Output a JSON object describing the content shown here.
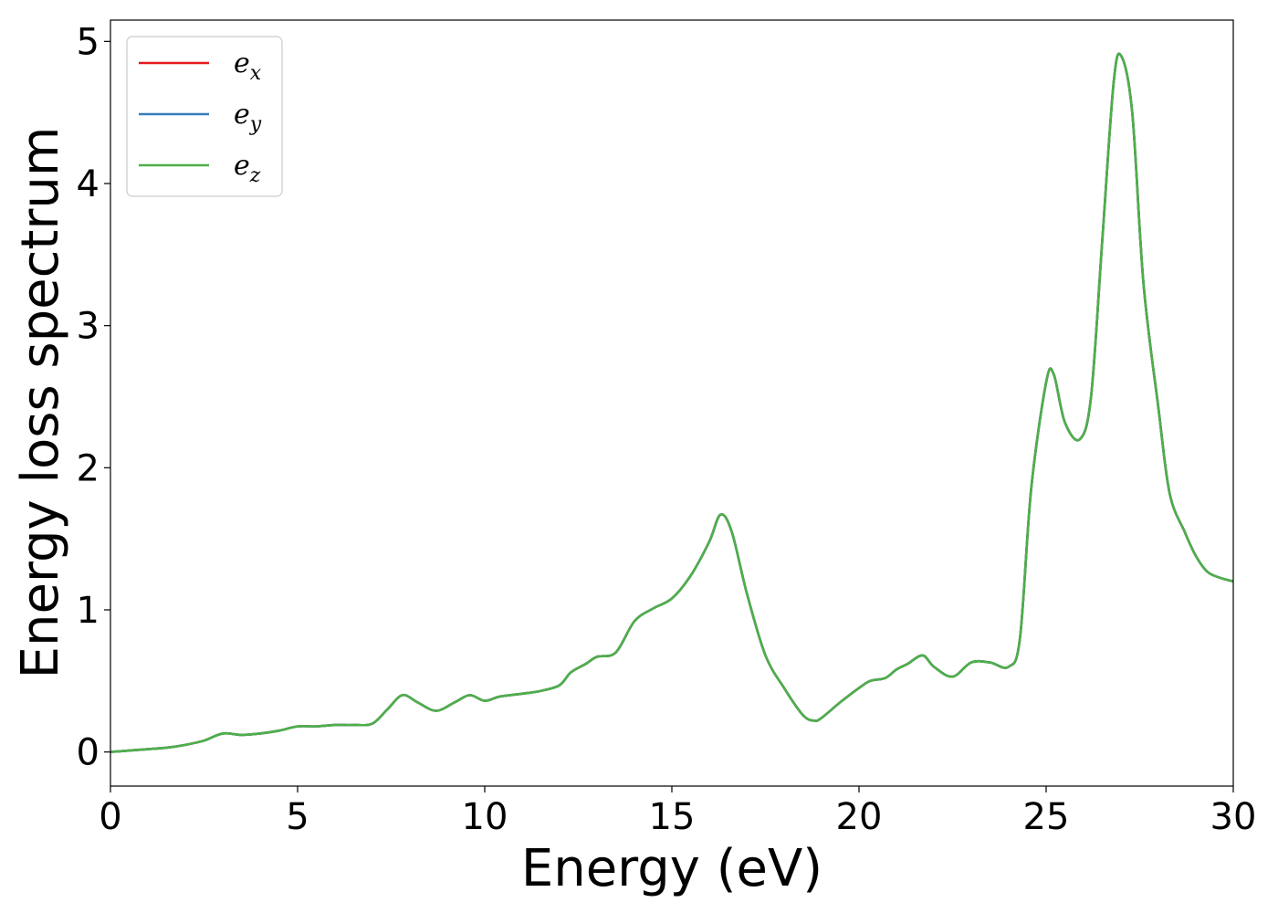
{
  "chart_data": {
    "type": "line",
    "xlabel": "Energy (eV)",
    "ylabel": "Energy loss spectrum",
    "xlim": [
      0,
      30
    ],
    "ylim": [
      -0.24,
      5.15
    ],
    "xticks": [
      0,
      5,
      10,
      15,
      20,
      25,
      30
    ],
    "xtick_labels": [
      "0",
      "5",
      "10",
      "15",
      "20",
      "25",
      "30"
    ],
    "yticks": [
      0,
      1,
      2,
      3,
      4,
      5
    ],
    "ytick_labels": [
      "0",
      "1",
      "2",
      "3",
      "4",
      "5"
    ],
    "grid": false,
    "legend_position": "top-left",
    "series": [
      {
        "name": "e",
        "subscript": "x",
        "color": "#e41a1c"
      },
      {
        "name": "e",
        "subscript": "y",
        "color": "#377eb8"
      },
      {
        "name": "e",
        "subscript": "z",
        "color": "#4daf4a"
      }
    ],
    "x": [
      0,
      0.5,
      1,
      1.5,
      2,
      2.5,
      3,
      3.5,
      4,
      4.5,
      5,
      5.5,
      6,
      6.5,
      7,
      7.4,
      7.8,
      8.2,
      8.7,
      9.2,
      9.6,
      10.0,
      10.4,
      11.0,
      11.5,
      12.0,
      12.3,
      12.7,
      13.0,
      13.5,
      14.0,
      14.5,
      15.0,
      15.5,
      16.0,
      16.3,
      16.6,
      17.0,
      17.5,
      18.0,
      18.5,
      18.8,
      19.0,
      19.5,
      20.0,
      20.3,
      20.7,
      21.0,
      21.3,
      21.7,
      22.0,
      22.5,
      23.0,
      23.5,
      24.0,
      24.3,
      24.6,
      25.0,
      25.2,
      25.5,
      25.9,
      26.2,
      26.5,
      26.8,
      27.0,
      27.3,
      27.6,
      28.0,
      28.3,
      28.7,
      29.0,
      29.3,
      29.6,
      30.0
    ],
    "values": [
      0.0,
      0.01,
      0.02,
      0.03,
      0.05,
      0.08,
      0.13,
      0.12,
      0.13,
      0.15,
      0.18,
      0.18,
      0.19,
      0.19,
      0.2,
      0.3,
      0.4,
      0.35,
      0.29,
      0.35,
      0.4,
      0.36,
      0.39,
      0.41,
      0.43,
      0.47,
      0.56,
      0.62,
      0.67,
      0.7,
      0.92,
      1.01,
      1.08,
      1.24,
      1.48,
      1.67,
      1.55,
      1.12,
      0.68,
      0.45,
      0.26,
      0.22,
      0.24,
      0.35,
      0.45,
      0.5,
      0.52,
      0.58,
      0.62,
      0.68,
      0.6,
      0.53,
      0.63,
      0.63,
      0.6,
      0.8,
      1.85,
      2.6,
      2.66,
      2.32,
      2.2,
      2.5,
      3.6,
      4.7,
      4.9,
      4.5,
      3.3,
      2.42,
      1.82,
      1.55,
      1.38,
      1.27,
      1.23,
      1.2
    ]
  }
}
